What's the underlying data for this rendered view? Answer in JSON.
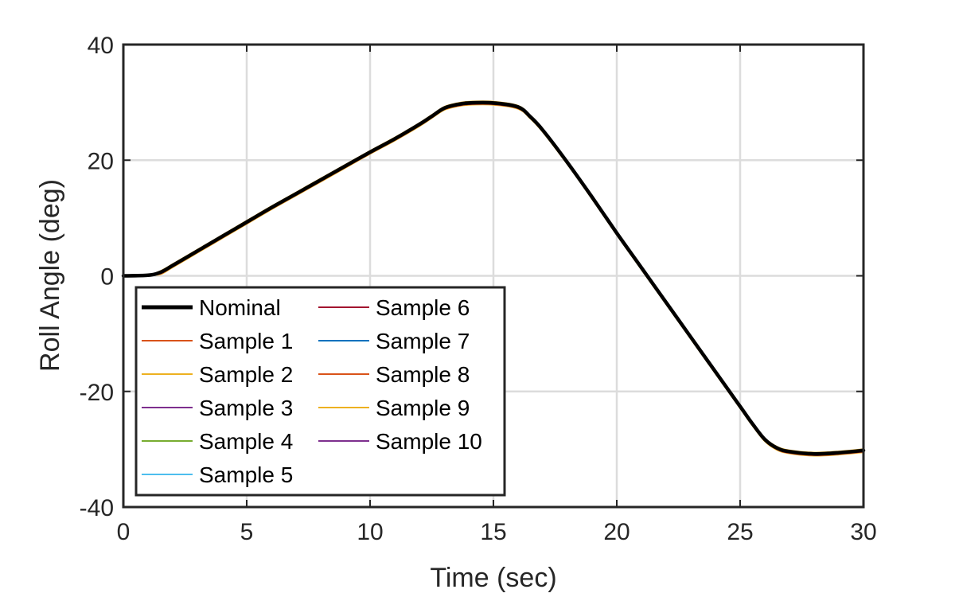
{
  "chart_data": {
    "type": "line",
    "xlabel": "Time (sec)",
    "ylabel": "Roll Angle (deg)",
    "xlim": [
      0,
      30
    ],
    "ylim": [
      -40,
      40
    ],
    "xticks": [
      0,
      5,
      10,
      15,
      20,
      25,
      30
    ],
    "yticks": [
      -40,
      -20,
      0,
      20,
      40
    ],
    "grid": true,
    "legend_location": "bottom-left",
    "legend_columns": 2,
    "series": [
      {
        "name": "Nominal",
        "color": "#000000",
        "style": "thick",
        "x": [
          0,
          1,
          1.5,
          2,
          3,
          4,
          5,
          6,
          7,
          8,
          9,
          10,
          11,
          12,
          12.5,
          13,
          13.5,
          14,
          15,
          16,
          16.5,
          17,
          18,
          19,
          20,
          21,
          22,
          23,
          24,
          25,
          25.5,
          26,
          26.5,
          27,
          28,
          29,
          30
        ],
        "y": [
          0,
          0.1,
          0.6,
          1.8,
          4.3,
          6.8,
          9.3,
          11.8,
          14.2,
          16.6,
          19.0,
          21.4,
          23.7,
          26.2,
          27.6,
          29.0,
          29.6,
          29.9,
          29.9,
          29.2,
          27.5,
          25.2,
          19.6,
          13.6,
          7.4,
          1.4,
          -4.6,
          -10.6,
          -16.6,
          -22.6,
          -25.6,
          -28.3,
          -29.8,
          -30.4,
          -30.8,
          -30.6,
          -30.2
        ]
      },
      {
        "name": "Sample 1",
        "color": "#D95319",
        "dy": 0.2
      },
      {
        "name": "Sample 2",
        "color": "#EDB120",
        "dy": -0.35
      },
      {
        "name": "Sample 3",
        "color": "#7E2F8E",
        "dy": 0.1
      },
      {
        "name": "Sample 4",
        "color": "#77AC30",
        "dy": -0.15
      },
      {
        "name": "Sample 5",
        "color": "#4DBEEE",
        "dy": 0.05
      },
      {
        "name": "Sample 6",
        "color": "#A2142F",
        "dy": -0.25
      },
      {
        "name": "Sample 7",
        "color": "#0072BD",
        "dy": 0.15
      },
      {
        "name": "Sample 8",
        "color": "#D95319",
        "dy": -0.1
      },
      {
        "name": "Sample 9",
        "color": "#EDB120",
        "dy": 0.25
      },
      {
        "name": "Sample 10",
        "color": "#7E2F8E",
        "dy": -0.05
      }
    ]
  }
}
